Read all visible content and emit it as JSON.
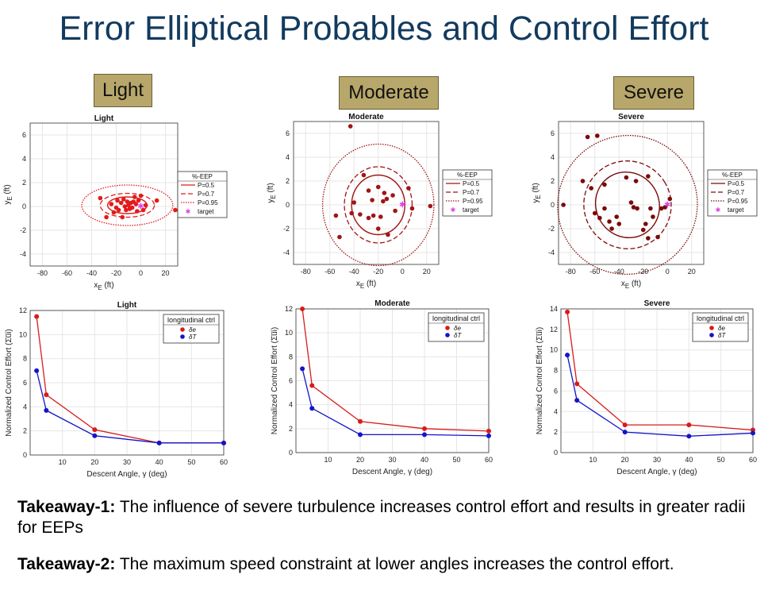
{
  "slide": {
    "title": "Error Elliptical Probables and Control Effort",
    "badges": [
      "Light",
      "Moderate",
      "Severe"
    ],
    "takeaways": [
      {
        "label": "Takeaway-1:",
        "text": " The influence of severe turbulence increases control effort and results in greater radii for EEPs"
      },
      {
        "label": "Takeaway-2:",
        "text": " The maximum speed constraint at lower angles increases the control effort."
      }
    ]
  },
  "colors": {
    "light": "#e21b1b",
    "moderate": "#a01515",
    "severe": "#7a0a0a",
    "red": "#d81b1b",
    "blue": "#1414c8",
    "target": "#e040e0",
    "badge": "#b8a76a",
    "title": "#123a5e"
  },
  "chart_data": [
    {
      "type": "scatter",
      "title": "Light",
      "xlabel": "x_E (ft)",
      "ylabel": "y_E (ft)",
      "xlim": [
        -90,
        30
      ],
      "ylim": [
        -5,
        7
      ],
      "xticks": [
        -80,
        -60,
        -40,
        -20,
        0,
        20
      ],
      "yticks": [
        -4,
        -2,
        0,
        2,
        4,
        6
      ],
      "legend": {
        "title": "%-EEP",
        "entries": [
          "P=0.5",
          "P=0.7",
          "P=0.95",
          "target"
        ],
        "placement": "outside-right"
      },
      "points": [
        [
          -33,
          0.7
        ],
        [
          -28,
          -0.9
        ],
        [
          -24,
          0.2
        ],
        [
          -22,
          -0.5
        ],
        [
          -20,
          -0.1
        ],
        [
          -19,
          0.5
        ],
        [
          -18,
          -0.3
        ],
        [
          -16,
          0.3
        ],
        [
          -15,
          -0.9
        ],
        [
          -14,
          0.6
        ],
        [
          -13,
          0.0
        ],
        [
          -12,
          -0.3
        ],
        [
          -11,
          0.4
        ],
        [
          -10,
          0.1
        ],
        [
          -9,
          -0.2
        ],
        [
          -8,
          0.3
        ],
        [
          -7,
          -0.1
        ],
        [
          -6,
          0.4
        ],
        [
          -5,
          0.8
        ],
        [
          -4,
          0.2
        ],
        [
          -3,
          -0.4
        ],
        [
          -2,
          0.5
        ],
        [
          0,
          0.9
        ],
        [
          2,
          -0.3
        ],
        [
          4,
          0.1
        ],
        [
          13,
          0.5
        ],
        [
          28,
          -0.3
        ]
      ],
      "ellipses": [
        {
          "P": "0.5",
          "cx": -11,
          "cy": 0.1,
          "rx": 16,
          "ry": 0.7
        },
        {
          "P": "0.7",
          "cx": -11,
          "cy": 0.1,
          "rx": 22,
          "ry": 1.0
        },
        {
          "P": "0.95",
          "cx": -11,
          "cy": 0.1,
          "rx": 37,
          "ry": 1.7
        }
      ],
      "target": [
        0,
        0
      ]
    },
    {
      "type": "scatter",
      "title": "Moderate",
      "xlabel": "x_E (ft)",
      "ylabel": "y_E (ft)",
      "xlim": [
        -90,
        30
      ],
      "ylim": [
        -5,
        7
      ],
      "xticks": [
        -80,
        -60,
        -40,
        -20,
        0,
        20
      ],
      "yticks": [
        -4,
        -2,
        0,
        2,
        4,
        6
      ],
      "legend": {
        "title": "%-EEP",
        "entries": [
          "P=0.5",
          "P=0.7",
          "P=0.95",
          "target"
        ],
        "placement": "outside-right"
      },
      "points": [
        [
          -43,
          6.6
        ],
        [
          -52,
          -2.7
        ],
        [
          -55,
          -0.9
        ],
        [
          -42,
          -0.7
        ],
        [
          -40,
          0.2
        ],
        [
          -35,
          -0.8
        ],
        [
          -32,
          2.5
        ],
        [
          -28,
          1.2
        ],
        [
          -25,
          0.4
        ],
        [
          -24,
          -0.9
        ],
        [
          -20,
          1.5
        ],
        [
          -18,
          -1.0
        ],
        [
          -16,
          0.3
        ],
        [
          -15,
          1.0
        ],
        [
          -13,
          0.5
        ],
        [
          -12,
          -2.5
        ],
        [
          -8,
          0.8
        ],
        [
          -6,
          -0.5
        ],
        [
          5,
          1.4
        ],
        [
          8,
          -0.3
        ],
        [
          23,
          -0.1
        ],
        [
          -20,
          -2.0
        ],
        [
          -28,
          -1.1
        ]
      ],
      "ellipses": [
        {
          "P": "0.5",
          "cx": -20,
          "cy": 0.0,
          "rx": 22,
          "ry": 2.5
        },
        {
          "P": "0.7",
          "cx": -20,
          "cy": 0.0,
          "rx": 28,
          "ry": 3.2
        },
        {
          "P": "0.95",
          "cx": -20,
          "cy": 0.0,
          "rx": 46,
          "ry": 5.1
        }
      ],
      "target": [
        0,
        0
      ]
    },
    {
      "type": "scatter",
      "title": "Severe",
      "xlabel": "x_E (ft)",
      "ylabel": "y_E (ft)",
      "xlim": [
        -90,
        30
      ],
      "ylim": [
        -5,
        7
      ],
      "xticks": [
        -80,
        -60,
        -40,
        -20,
        0,
        20
      ],
      "yticks": [
        -4,
        -2,
        0,
        2,
        4,
        6
      ],
      "legend": {
        "title": "%-EEP",
        "entries": [
          "P=0.5",
          "P=0.7",
          "P=0.95",
          "target"
        ],
        "placement": "outside-right"
      },
      "points": [
        [
          -86,
          0.0
        ],
        [
          -66,
          5.7
        ],
        [
          -58,
          5.8
        ],
        [
          -70,
          2.0
        ],
        [
          -63,
          1.4
        ],
        [
          -60,
          -0.7
        ],
        [
          -56,
          -1.1
        ],
        [
          -52,
          1.7
        ],
        [
          -48,
          -1.4
        ],
        [
          -46,
          -2.0
        ],
        [
          -40,
          -1.6
        ],
        [
          -34,
          2.3
        ],
        [
          -30,
          0.2
        ],
        [
          -28,
          -0.2
        ],
        [
          -26,
          2.0
        ],
        [
          -25,
          -0.3
        ],
        [
          -20,
          -2.1
        ],
        [
          -18,
          -1.6
        ],
        [
          -16,
          -2.8
        ],
        [
          -14,
          -0.3
        ],
        [
          -12,
          -1.0
        ],
        [
          -8,
          -2.7
        ],
        [
          -5,
          -0.3
        ],
        [
          -2,
          -0.2
        ],
        [
          2,
          0.5
        ],
        [
          -16,
          2.4
        ],
        [
          -52,
          -0.3
        ],
        [
          -42,
          -1.0
        ]
      ],
      "ellipses": [
        {
          "P": "0.5",
          "cx": -33,
          "cy": 0.0,
          "rx": 26,
          "ry": 2.8,
          "angle": -32
        },
        {
          "P": "0.7",
          "cx": -33,
          "cy": 0.0,
          "rx": 36,
          "ry": 3.7,
          "angle": -32
        },
        {
          "P": "0.95",
          "cx": -33,
          "cy": 0.0,
          "rx": 58,
          "ry": 5.8,
          "angle": -32
        }
      ],
      "target": [
        0,
        0
      ]
    },
    {
      "type": "line",
      "title": "Light",
      "xlabel": "Descent Angle, γ (deg)",
      "ylabel": "Normalized Control Effort (Σu̅i)",
      "xlim": [
        0,
        60
      ],
      "ylim": [
        0,
        12
      ],
      "xticks": [
        10,
        20,
        30,
        40,
        50,
        60
      ],
      "yticks": [
        0,
        2,
        4,
        6,
        8,
        10,
        12
      ],
      "legend": {
        "title": "longitudinal ctrl",
        "placement": "top-right"
      },
      "x": [
        2,
        5,
        20,
        40,
        60
      ],
      "series": [
        {
          "name": "δe",
          "values": [
            11.5,
            5.0,
            2.1,
            1.0,
            1.0
          ]
        },
        {
          "name": "δT",
          "values": [
            7.0,
            3.7,
            1.6,
            1.0,
            1.0
          ]
        }
      ]
    },
    {
      "type": "line",
      "title": "Moderate",
      "xlabel": "Descent Angle, γ (deg)",
      "ylabel": "Normalized Control Effort (Σu̅i)",
      "xlim": [
        0,
        60
      ],
      "ylim": [
        0,
        12
      ],
      "xticks": [
        10,
        20,
        30,
        40,
        50,
        60
      ],
      "yticks": [
        0,
        2,
        4,
        6,
        8,
        10,
        12
      ],
      "legend": {
        "title": "longitudinal ctrl",
        "placement": "top-right"
      },
      "x": [
        2,
        5,
        20,
        40,
        60
      ],
      "series": [
        {
          "name": "δe",
          "values": [
            12.0,
            5.6,
            2.6,
            2.0,
            1.8
          ]
        },
        {
          "name": "δT",
          "values": [
            7.0,
            3.7,
            1.5,
            1.5,
            1.4
          ]
        }
      ]
    },
    {
      "type": "line",
      "title": "Severe",
      "xlabel": "Descent Angle, γ (deg)",
      "ylabel": "Normalized Control Effort (Σu̅i)",
      "xlim": [
        0,
        60
      ],
      "ylim": [
        0,
        14
      ],
      "xticks": [
        10,
        20,
        30,
        40,
        50,
        60
      ],
      "yticks": [
        0,
        2,
        4,
        6,
        8,
        10,
        12,
        14
      ],
      "legend": {
        "title": "longitudinal ctrl",
        "placement": "top-right"
      },
      "x": [
        2,
        5,
        20,
        40,
        60
      ],
      "series": [
        {
          "name": "δe",
          "values": [
            13.7,
            6.7,
            2.7,
            2.7,
            2.2
          ]
        },
        {
          "name": "δT",
          "values": [
            9.5,
            5.1,
            2.0,
            1.6,
            1.9
          ]
        }
      ]
    }
  ]
}
